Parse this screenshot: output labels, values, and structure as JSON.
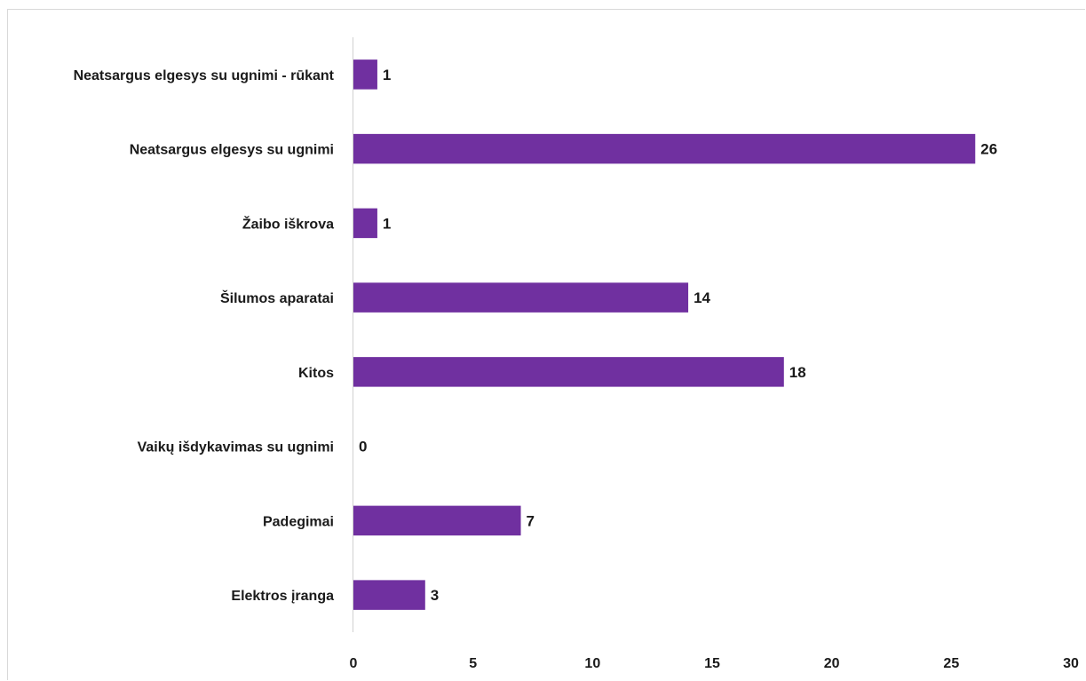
{
  "chart_data": {
    "type": "bar",
    "orientation": "horizontal",
    "categories": [
      "Neatsargus elgesys su ugnimi - rūkant",
      "Neatsargus elgesys su ugnimi",
      "Žaibo iškrova",
      "Šilumos aparatai",
      "Kitos",
      "Vaikų išdykavimas su ugnimi",
      "Padegimai",
      "Elektros įranga"
    ],
    "values": [
      1,
      26,
      1,
      14,
      18,
      0,
      7,
      3
    ],
    "xlim": [
      0,
      30
    ],
    "xticks": [
      "0",
      "5",
      "10",
      "15",
      "20",
      "25",
      "30"
    ],
    "bar_color": "#7030a0",
    "grid": false,
    "data_labels": true
  }
}
